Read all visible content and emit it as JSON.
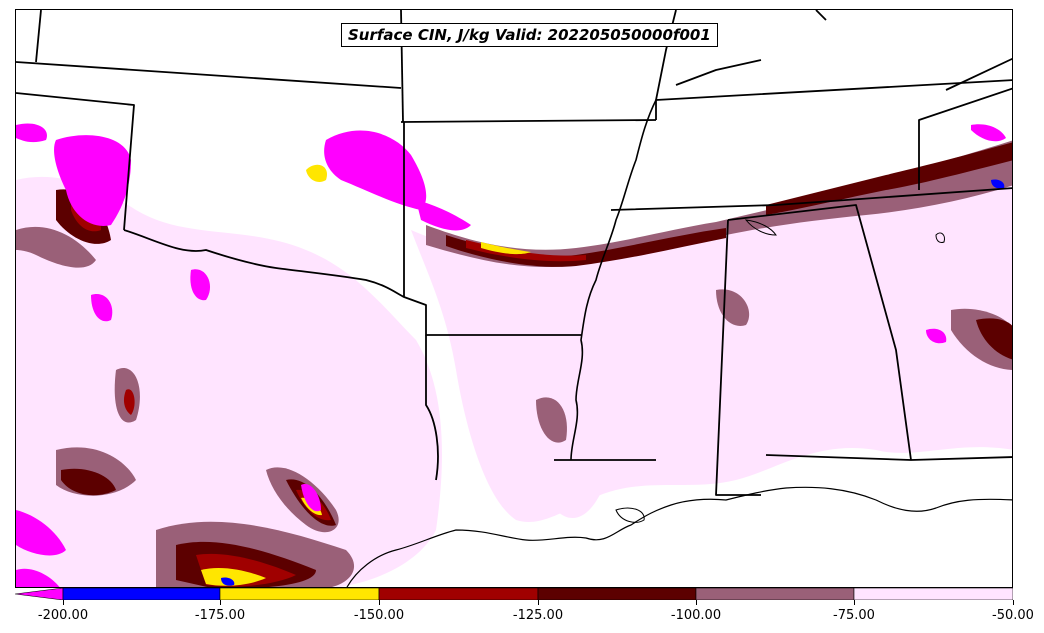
{
  "title": "Surface CIN, J/kg Valid: 202205050000f001",
  "colorbar": {
    "tick_labels": [
      "-200.00",
      "-175.00",
      "-150.00",
      "-125.00",
      "-100.00",
      "-75.00",
      "-50.00"
    ],
    "colors": [
      "#ff00ff",
      "#0000ff",
      "#ffe600",
      "#a00000",
      "#5c0000",
      "#9a6078",
      "#ffe4ff"
    ]
  },
  "map_colors": {
    "very_light": "#ffe4ff",
    "mauve": "#9a6078",
    "dark_red": "#5c0000",
    "red": "#a00000",
    "yellow": "#ffe600",
    "blue": "#0000ff",
    "magenta": "#ff00ff"
  }
}
